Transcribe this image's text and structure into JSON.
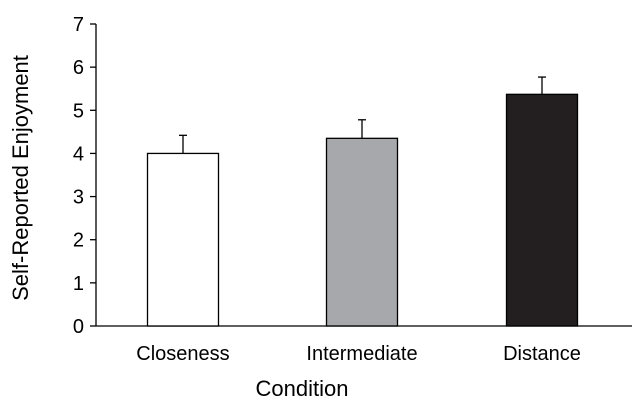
{
  "chart_data": {
    "type": "bar",
    "title": "",
    "xlabel": "Condition",
    "ylabel": "Self-Reported Enjoyment",
    "ylim": [
      0,
      7
    ],
    "yticks": [
      0,
      1,
      2,
      3,
      4,
      5,
      6,
      7
    ],
    "categories": [
      "Closeness",
      "Intermediate",
      "Distance"
    ],
    "values": [
      4.0,
      4.35,
      5.37
    ],
    "error_upper": [
      0.42,
      0.43,
      0.4
    ],
    "bar_colors": [
      "#ffffff",
      "#a6a8ab",
      "#231f20"
    ],
    "grid": false,
    "legend": "none"
  }
}
